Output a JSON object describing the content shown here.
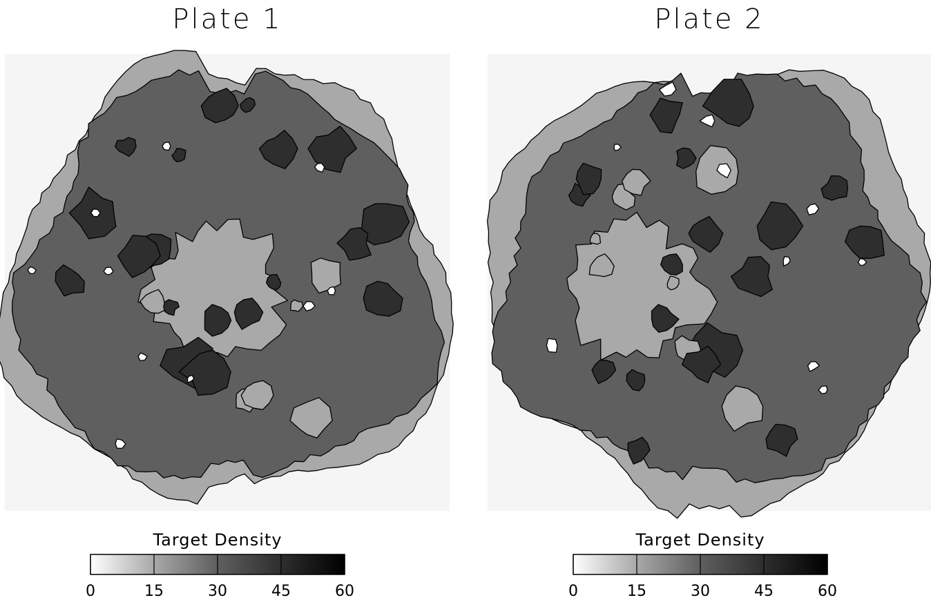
{
  "charts": [
    {
      "type": "contour",
      "title": "Plate 1",
      "colorbar_label": "Target Density",
      "clim": [
        0,
        60
      ],
      "cticks": [
        0,
        15,
        30,
        45,
        60
      ]
    },
    {
      "type": "contour",
      "title": "Plate 2",
      "colorbar_label": "Target Density",
      "clim": [
        0,
        60
      ],
      "cticks": [
        0,
        15,
        30,
        45,
        60
      ]
    }
  ]
}
